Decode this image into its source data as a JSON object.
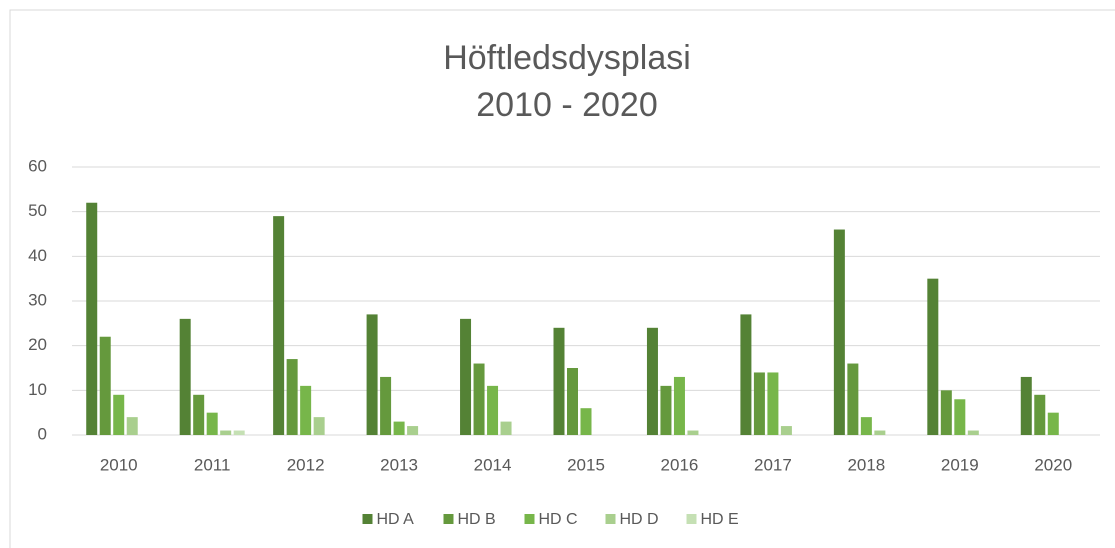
{
  "chart_data": {
    "type": "bar",
    "title": "Höftledsdysplasi",
    "subtitle": "2010 - 2020",
    "categories": [
      "2010",
      "2011",
      "2012",
      "2013",
      "2014",
      "2015",
      "2016",
      "2017",
      "2018",
      "2019",
      "2020"
    ],
    "series": [
      {
        "name": "HD A",
        "color": "#548235",
        "values": [
          52,
          26,
          49,
          27,
          26,
          24,
          24,
          27,
          46,
          35,
          13
        ]
      },
      {
        "name": "HD B",
        "color": "#65993d",
        "values": [
          22,
          9,
          17,
          13,
          16,
          15,
          11,
          14,
          16,
          10,
          9
        ]
      },
      {
        "name": "HD C",
        "color": "#77b64a",
        "values": [
          9,
          5,
          11,
          3,
          11,
          6,
          13,
          14,
          4,
          8,
          5
        ]
      },
      {
        "name": "HD D",
        "color": "#a9cf8e",
        "values": [
          4,
          1,
          4,
          2,
          3,
          0,
          1,
          2,
          1,
          1,
          0
        ]
      },
      {
        "name": "HD E",
        "color": "#c5e0b4",
        "values": [
          0,
          1,
          0,
          0,
          0,
          0,
          0,
          0,
          0,
          0,
          0
        ]
      }
    ],
    "ylim": [
      0,
      60
    ],
    "yticks": [
      0,
      10,
      20,
      30,
      40,
      50,
      60
    ],
    "grid": true,
    "legend": "bottom"
  }
}
